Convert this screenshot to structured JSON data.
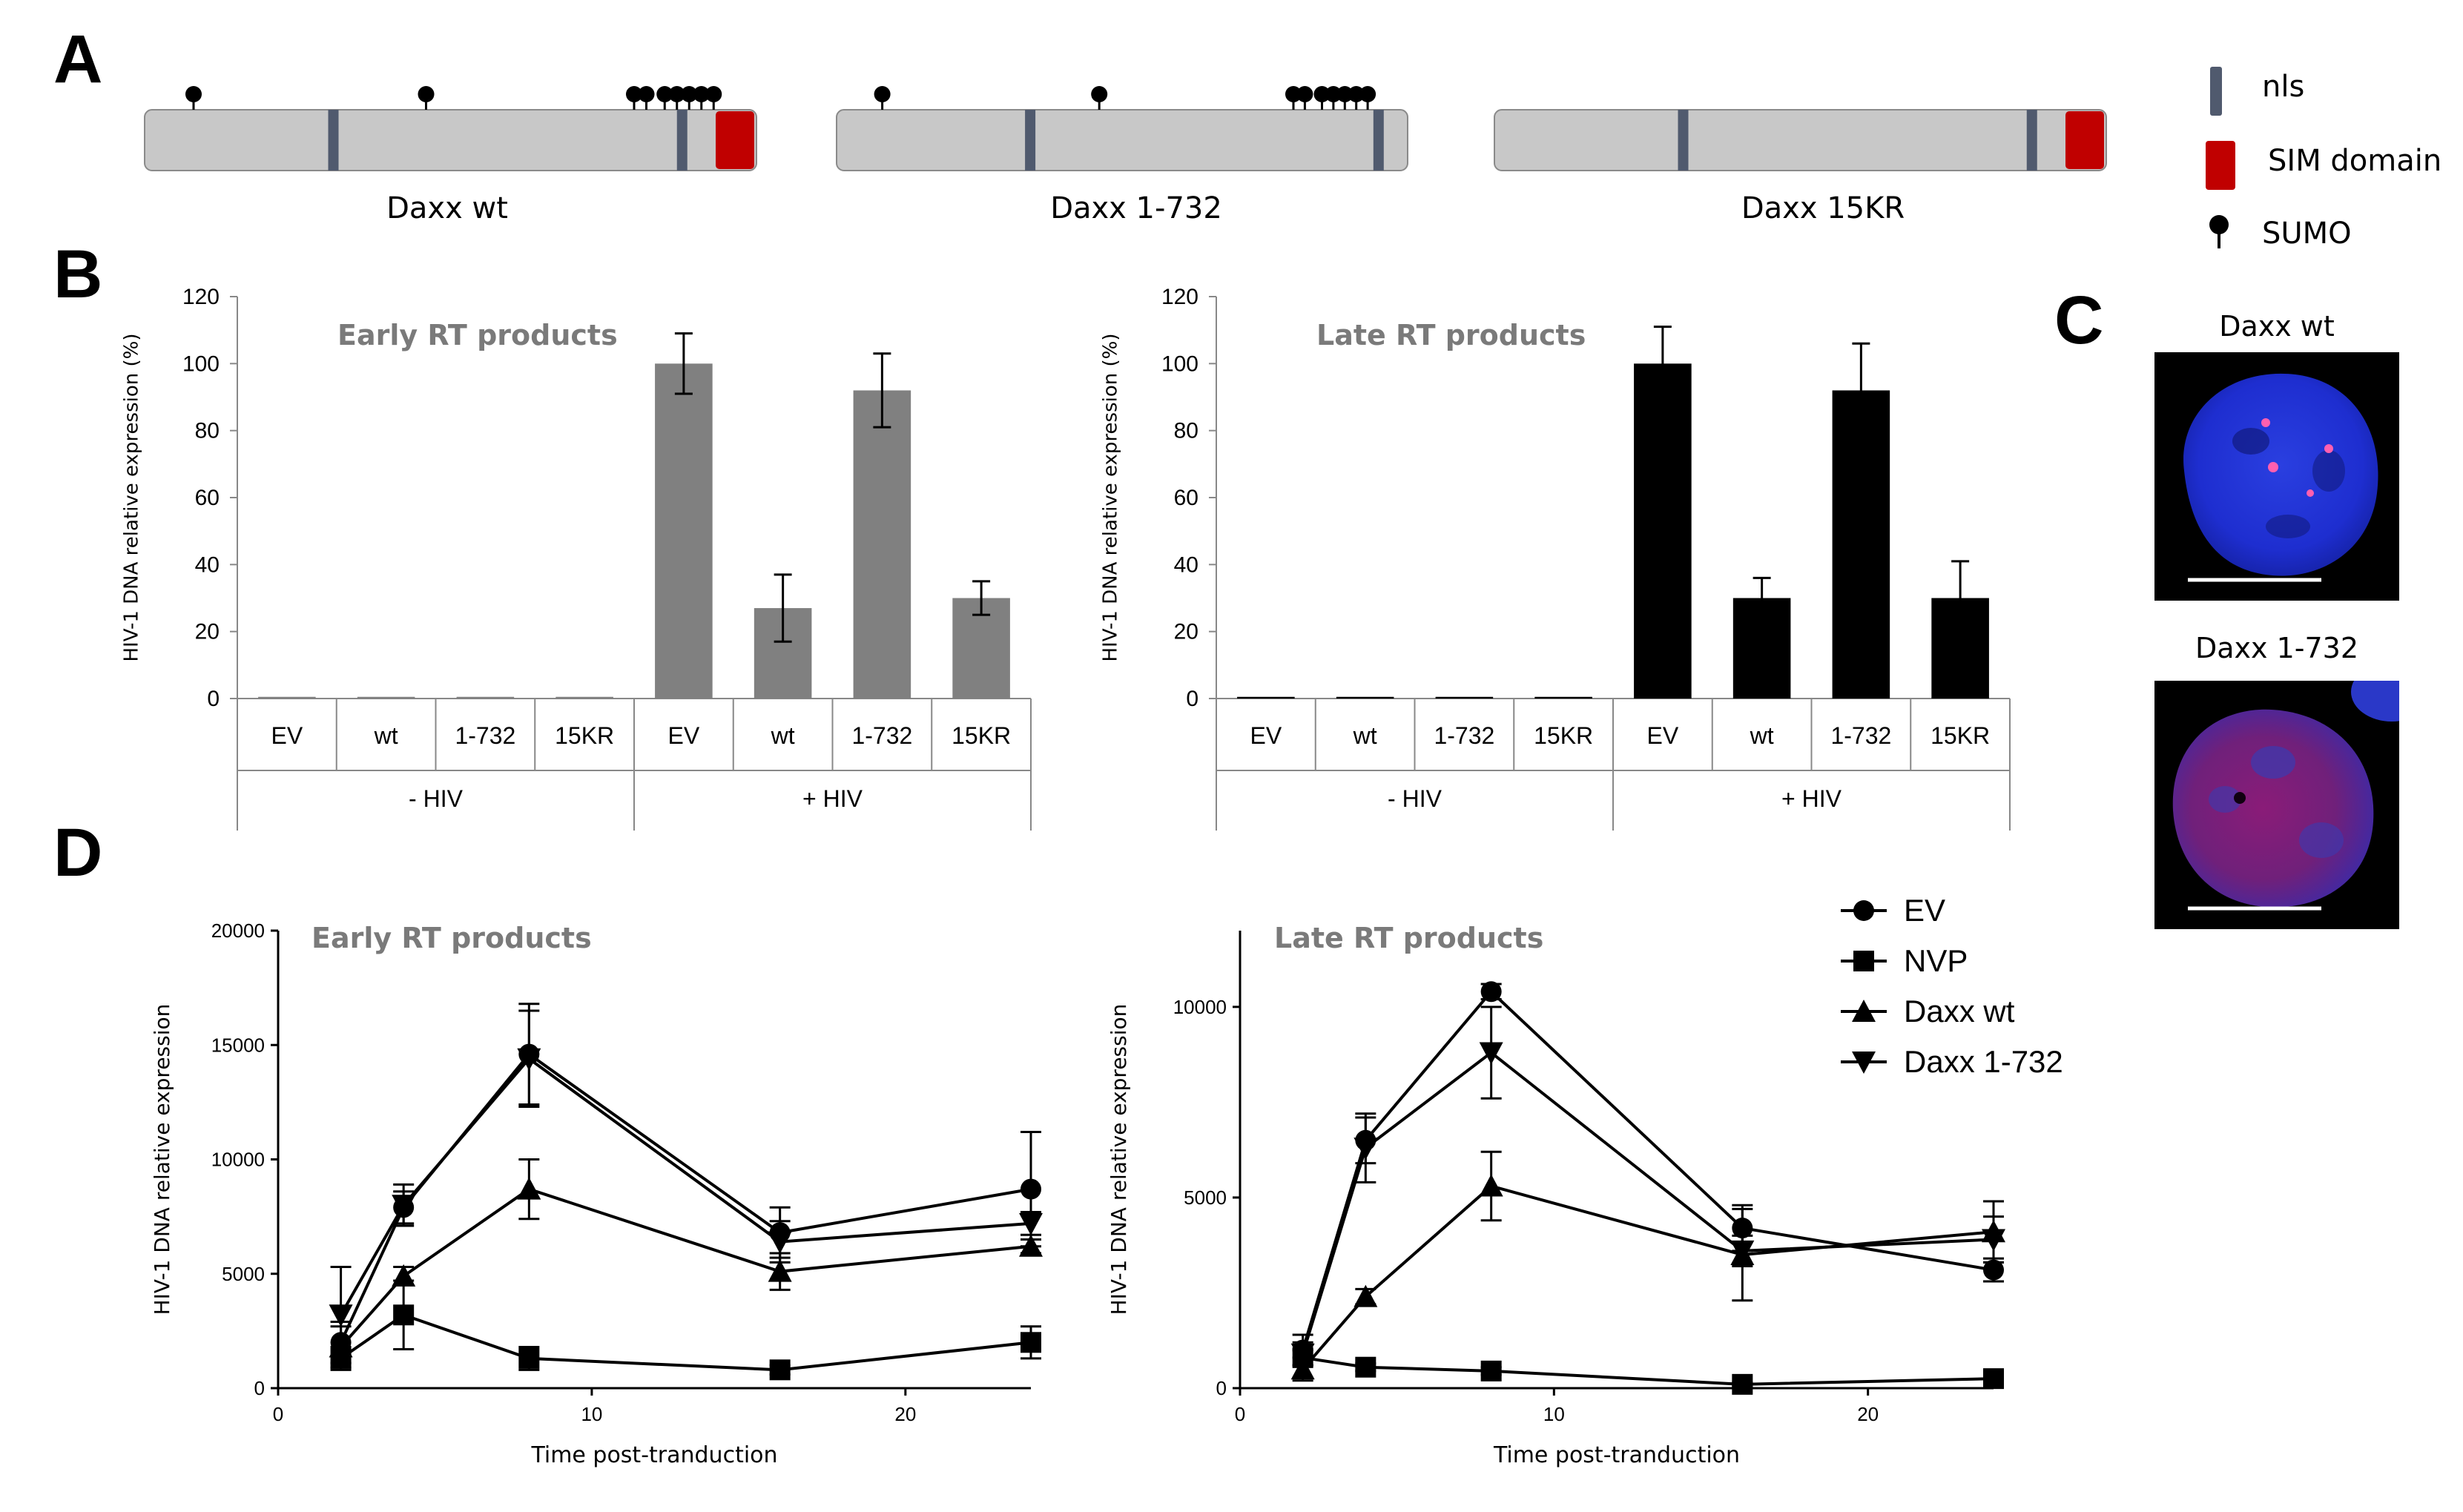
{
  "panels": {
    "a": "A",
    "b": "B",
    "c": "C",
    "d": "D"
  },
  "panel_a": {
    "constructs": [
      {
        "label": "Daxx wt",
        "sumo_count": 9,
        "has_sim": true
      },
      {
        "label": "Daxx 1-732",
        "sumo_count": 9,
        "has_sim": false
      },
      {
        "label": "Daxx 15KR",
        "sumo_count": 0,
        "has_sim": true
      }
    ],
    "legend": [
      {
        "label": "nls",
        "symbol": "nls-bar",
        "color": "#505a6e"
      },
      {
        "label": "SIM domain",
        "symbol": "sim-box",
        "color": "#c00000"
      },
      {
        "label": "SUMO",
        "symbol": "sumo-pin",
        "color": "#000000"
      }
    ]
  },
  "panel_b": {
    "ylabel": "HIV-1 DNA relative expression (%)",
    "groups": [
      "- HIV",
      "+ HIV"
    ]
  },
  "panel_c": {
    "titles": [
      "Daxx wt",
      "Daxx 1-732"
    ]
  },
  "panel_d": {
    "ylabel": "HIV-1 DNA relative expression",
    "xlabel": "Time post-tranduction"
  },
  "chart_data": [
    {
      "type": "bar",
      "title": "Early RT products",
      "ylabel": "HIV-1 DNA relative expression (%)",
      "ylim": [
        0,
        120
      ],
      "yticks": [
        0,
        20,
        40,
        60,
        80,
        100,
        120
      ],
      "categories": [
        "EV",
        "wt",
        "1-732",
        "15KR",
        "EV",
        "wt",
        "1-732",
        "15KR"
      ],
      "groups": [
        {
          "label": "- HIV",
          "size": 4
        },
        {
          "label": "+ HIV",
          "size": 4
        }
      ],
      "values": [
        0.5,
        0.5,
        0.5,
        0.5,
        100,
        27,
        92,
        30
      ],
      "errors": [
        0,
        0,
        0,
        0,
        9,
        10,
        11,
        5
      ],
      "color": "#808080"
    },
    {
      "type": "bar",
      "title": "Late RT products",
      "ylabel": "HIV-1 DNA relative expression (%)",
      "ylim": [
        0,
        120
      ],
      "yticks": [
        0,
        20,
        40,
        60,
        80,
        100,
        120
      ],
      "categories": [
        "EV",
        "wt",
        "1-732",
        "15KR",
        "EV",
        "wt",
        "1-732",
        "15KR"
      ],
      "groups": [
        {
          "label": "- HIV",
          "size": 4
        },
        {
          "label": "+ HIV",
          "size": 4
        }
      ],
      "values": [
        0.5,
        0.5,
        0.5,
        0.5,
        100,
        30,
        92,
        30
      ],
      "errors": [
        0,
        0,
        0,
        0,
        11,
        6,
        14,
        11
      ],
      "color": "#000000"
    },
    {
      "type": "line",
      "title": "Early RT products",
      "xlabel": "Time post-tranduction",
      "ylabel": "HIV-1 DNA relative expression",
      "xlim": [
        0,
        24
      ],
      "ylim": [
        0,
        20000
      ],
      "xticks": [
        0,
        10,
        20
      ],
      "yticks": [
        0,
        5000,
        10000,
        15000,
        20000
      ],
      "x": [
        2,
        4,
        8,
        16,
        24
      ],
      "series": [
        {
          "name": "EV",
          "marker": "circle",
          "values": [
            2000,
            7900,
            14600,
            6800,
            8700
          ],
          "errors": [
            900,
            700,
            2200,
            1100,
            2500
          ]
        },
        {
          "name": "NVP",
          "marker": "square",
          "values": [
            1300,
            3200,
            1300,
            800,
            2000
          ],
          "errors": [
            500,
            1500,
            500,
            200,
            700
          ]
        },
        {
          "name": "Daxx wt",
          "marker": "triangle-up",
          "values": [
            1800,
            4900,
            8700,
            5100,
            6200
          ],
          "errors": [
            900,
            400,
            1300,
            800,
            300
          ]
        },
        {
          "name": "Daxx 1-732",
          "marker": "triangle-down",
          "values": [
            3200,
            8000,
            14400,
            6400,
            7200
          ],
          "errors": [
            2100,
            900,
            2100,
            900,
            500
          ]
        }
      ]
    },
    {
      "type": "line",
      "title": "Late RT products",
      "xlabel": "Time post-tranduction",
      "ylabel": "HIV-1 DNA relative expression",
      "xlim": [
        0,
        24
      ],
      "ylim": [
        0,
        12000
      ],
      "xticks": [
        0,
        10,
        20
      ],
      "yticks": [
        0,
        5000,
        10000
      ],
      "x": [
        2,
        4,
        8,
        16,
        24
      ],
      "series": [
        {
          "name": "EV",
          "marker": "circle",
          "values": [
            1000,
            6500,
            10400,
            4200,
            3100
          ],
          "errors": [
            400,
            600,
            200,
            600,
            300
          ]
        },
        {
          "name": "NVP",
          "marker": "square",
          "values": [
            800,
            550,
            450,
            100,
            250
          ],
          "errors": [
            200,
            100,
            100,
            50,
            50
          ]
        },
        {
          "name": "Daxx wt",
          "marker": "triangle-up",
          "values": [
            500,
            2400,
            5300,
            3500,
            4100
          ],
          "errors": [
            300,
            200,
            900,
            1200,
            800
          ]
        },
        {
          "name": "Daxx 1-732",
          "marker": "triangle-down",
          "values": [
            900,
            6300,
            8800,
            3600,
            3900
          ],
          "errors": [
            300,
            900,
            1200,
            400,
            600
          ]
        }
      ],
      "legend": [
        "EV",
        "NVP",
        "Daxx wt",
        "Daxx 1-732"
      ]
    }
  ]
}
